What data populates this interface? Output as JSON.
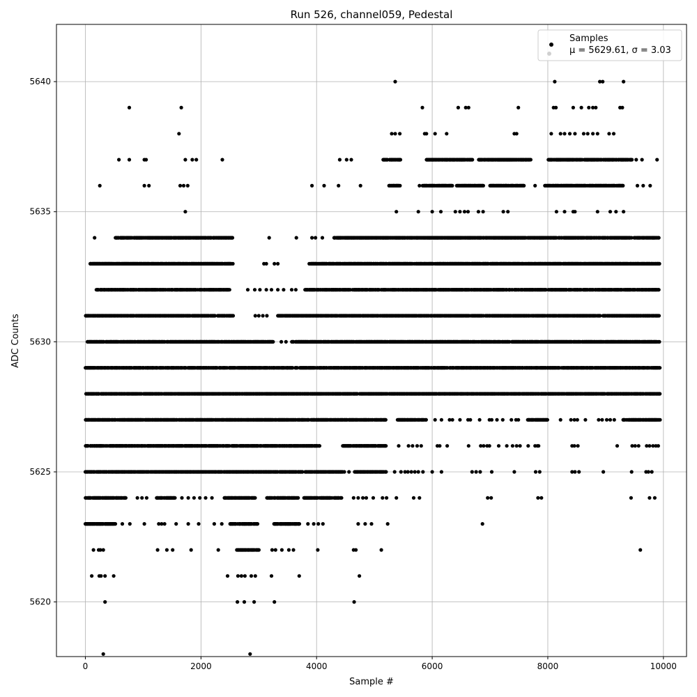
{
  "chart_data": {
    "type": "scatter",
    "title": "Run 526, channel059, Pedestal",
    "xlabel": "Sample #",
    "ylabel": "ADC Counts",
    "xlim": [
      -500,
      10400
    ],
    "ylim": [
      5617.9,
      5642.2
    ],
    "xticks": [
      0,
      2000,
      4000,
      6000,
      8000,
      10000
    ],
    "xtick_labels": [
      "0",
      "2000",
      "4000",
      "6000",
      "8000",
      "10000"
    ],
    "yticks": [
      5620,
      5625,
      5630,
      5635,
      5640
    ],
    "ytick_labels": [
      "5620",
      "5625",
      "5630",
      "5635",
      "5640"
    ],
    "grid": true,
    "legend_position": "top-right",
    "marker_color": "#000000",
    "series": [
      {
        "name": "Samples",
        "stats_label": "μ = 5629.61, σ = 3.03",
        "level_ranges": [
          {
            "y": 5640,
            "x": [
              5360,
              8120,
              8900,
              8950,
              9310
            ]
          },
          {
            "y": 5639,
            "x": [
              760,
              1660,
              5830,
              6450,
              6580,
              6630,
              7490,
              8100,
              8140,
              8440,
              8580,
              8710,
              8780,
              8830,
              9250,
              9290
            ]
          },
          {
            "y": 5638,
            "x": [
              1620,
              5300,
              5360,
              5440,
              5870,
              5900,
              6050,
              6250,
              7420,
              7460,
              8060,
              8220,
              8290,
              8380,
              8470,
              8620,
              8690,
              8780,
              8860,
              9060,
              9140
            ]
          },
          {
            "y": 5637,
            "ranges": [
              [
                5150,
                5450
              ],
              [
                5900,
                6700
              ],
              [
                6800,
                7700
              ],
              [
                8000,
                9450
              ]
            ],
            "x": [
              580,
              760,
              1020,
              1050,
              1730,
              1850,
              1920,
              2370,
              4400,
              4520,
              4600,
              9530,
              9630,
              9890
            ]
          },
          {
            "y": 5636,
            "ranges": [
              [
                5250,
                5450
              ],
              [
                5830,
                6350
              ],
              [
                6420,
                6900
              ],
              [
                7000,
                7600
              ],
              [
                7950,
                9300
              ]
            ],
            "x": [
              250,
              1020,
              1100,
              1640,
              1700,
              1770,
              3920,
              4130,
              4380,
              4760,
              5780,
              7780,
              9550,
              9650,
              9770
            ]
          },
          {
            "y": 5635,
            "x": [
              1730,
              5380,
              5760,
              6000,
              6150,
              6400,
              6480,
              6560,
              6620,
              6800,
              6880,
              7230,
              7310,
              8150,
              8290,
              8440,
              8470,
              8860,
              9080,
              9180,
              9310
            ]
          },
          {
            "y": 5634,
            "ranges": [
              [
                520,
                2550
              ],
              [
                4300,
                9920
              ]
            ],
            "x": [
              160,
              3180,
              3650,
              3920,
              3980,
              4100
            ]
          },
          {
            "y": 5633,
            "ranges": [
              [
                80,
                2550
              ],
              [
                3870,
                9930
              ]
            ],
            "x": [
              3090,
              3130,
              3270,
              3330
            ]
          },
          {
            "y": 5632,
            "ranges": [
              [
                180,
                2500
              ],
              [
                3800,
                9930
              ]
            ],
            "x": [
              2810,
              2930,
              3020,
              3130,
              3220,
              3330,
              3430,
              3570,
              3640
            ]
          },
          {
            "y": 5631,
            "ranges": [
              [
                0,
                2560
              ],
              [
                3330,
                9930
              ]
            ],
            "x": [
              2940,
              3000,
              3070,
              3140
            ]
          },
          {
            "y": 5630,
            "ranges": [
              [
                30,
                3250
              ],
              [
                3570,
                9930
              ]
            ],
            "x": [
              3390,
              3470
            ]
          },
          {
            "y": 5629,
            "ranges": [
              [
                0,
                9940
              ]
            ]
          },
          {
            "y": 5628,
            "ranges": [
              [
                0,
                9940
              ]
            ]
          },
          {
            "y": 5627,
            "ranges": [
              [
                0,
                5200
              ],
              [
                5400,
                5900
              ],
              [
                7650,
                8000
              ],
              [
                9300,
                9940
              ]
            ],
            "x": [
              6050,
              6160,
              6300,
              6350,
              6480,
              6620,
              6660,
              6820,
              6990,
              7030,
              7120,
              7220,
              7370,
              7450,
              7490,
              8220,
              8400,
              8460,
              8510,
              8650,
              8880,
              8940,
              9020,
              9080,
              9150
            ]
          },
          {
            "y": 5626,
            "ranges": [
              [
                0,
                4050
              ],
              [
                4450,
                5200
              ]
            ],
            "x": [
              5420,
              5590,
              5660,
              5740,
              5810,
              6090,
              6130,
              6260,
              6630,
              6840,
              6890,
              6950,
              6990,
              7150,
              7290,
              7390,
              7460,
              7520,
              7660,
              7780,
              7820,
              7840,
              8420,
              8460,
              8520,
              9200,
              9460,
              9510,
              9570,
              9710,
              9760,
              9820,
              9870,
              9910
            ]
          },
          {
            "y": 5625,
            "ranges": [
              [
                0,
                2900
              ],
              [
                2900,
                4450
              ],
              [
                4650,
                5200
              ]
            ],
            "x": [
              4480,
              4560,
              5350,
              5460,
              5530,
              5580,
              5640,
              5700,
              5760,
              5840,
              6000,
              6160,
              6690,
              6760,
              6830,
              7030,
              7420,
              7790,
              7860,
              8420,
              8470,
              8540,
              8960,
              9450,
              9700,
              9740,
              9800
            ]
          },
          {
            "y": 5624,
            "ranges": [
              [
                0,
                700
              ],
              [
                1230,
                1550
              ],
              [
                2400,
                2950
              ],
              [
                3140,
                3680
              ],
              [
                3780,
                4430
              ]
            ],
            "x": [
              900,
              980,
              1060,
              1670,
              1780,
              1880,
              1980,
              2080,
              2190,
              4640,
              4720,
              4800,
              4860,
              4980,
              5140,
              5210,
              5380,
              5680,
              5780,
              6960,
              7020,
              7830,
              7890,
              9440,
              9760,
              9850
            ]
          },
          {
            "y": 5623,
            "ranges": [
              [
                0,
                520
              ],
              [
                2500,
                2980
              ],
              [
                3250,
                3700
              ]
            ],
            "x": [
              640,
              770,
              1020,
              1270,
              1320,
              1370,
              1570,
              1780,
              1960,
              2230,
              2360,
              3850,
              3950,
              4030,
              4110,
              4720,
              4840,
              4950,
              5230,
              6870
            ]
          },
          {
            "y": 5622,
            "ranges": [
              [
                2620,
                3000
              ]
            ],
            "x": [
              140,
              230,
              260,
              310,
              1250,
              1410,
              1510,
              1830,
              2300,
              3230,
              3290,
              3400,
              3520,
              3600,
              4020,
              4640,
              4680,
              5120,
              9600
            ]
          },
          {
            "y": 5621,
            "x": [
              110,
              240,
              270,
              340,
              490,
              2460,
              2640,
              2700,
              2760,
              2870,
              2940,
              3220,
              3700,
              4740
            ]
          },
          {
            "y": 5620,
            "x": [
              340,
              2630,
              2750,
              2920,
              3270,
              4650
            ]
          },
          {
            "y": 5618,
            "x": [
              310,
              2850
            ]
          }
        ]
      }
    ]
  }
}
